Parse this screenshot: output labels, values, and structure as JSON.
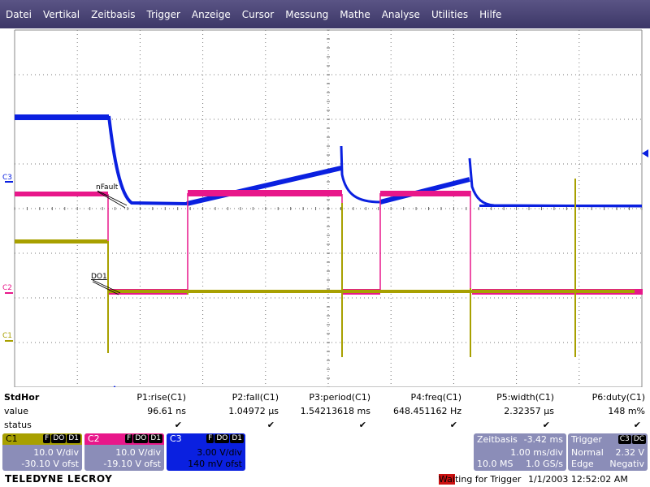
{
  "menu": [
    "Datei",
    "Vertikal",
    "Zeitbasis",
    "Trigger",
    "Anzeige",
    "Cursor",
    "Messung",
    "Mathe",
    "Analyse",
    "Utilities",
    "Hilfe"
  ],
  "colors": {
    "c1": "#a8a000",
    "c2": "#e8178a",
    "c3": "#0a20e0",
    "menu": "#4a4575",
    "panel": "#8b8db8"
  },
  "traces": {
    "c3_label": "C3",
    "c2_label": "C2",
    "c1_label": "C1",
    "annot_nfault": "nFault",
    "annot_do1": "DO1"
  },
  "measure": {
    "header": "StdHor",
    "row_value": "value",
    "row_status": "status",
    "params": [
      {
        "name": "P1:rise(C1)",
        "value": "96.61 ns"
      },
      {
        "name": "P2:fall(C1)",
        "value": "1.04972 µs"
      },
      {
        "name": "P3:period(C1)",
        "value": "1.54213618 ms"
      },
      {
        "name": "P4:freq(C1)",
        "value": "648.451162 Hz"
      },
      {
        "name": "P5:width(C1)",
        "value": "2.32357 µs"
      },
      {
        "name": "P6:duty(C1)",
        "value": "148 m%"
      }
    ]
  },
  "channels": {
    "c1": {
      "name": "C1",
      "badges": [
        "F",
        "DO",
        "D1"
      ],
      "vdiv": "10.0 V/div",
      "ofst": "-30.10 V ofst"
    },
    "c2": {
      "name": "C2",
      "badges": [
        "F",
        "DO",
        "D1"
      ],
      "vdiv": "10.0 V/div",
      "ofst": "-19.10 V ofst"
    },
    "c3": {
      "name": "C3",
      "badges": [
        "F",
        "DO",
        "D1"
      ],
      "vdiv": "3.00 V/div",
      "ofst": "140 mV ofst"
    }
  },
  "timebase": {
    "label": "Zeitbasis",
    "delay": "-3.42 ms",
    "tdiv": "1.00 ms/div",
    "samples": "10.0 MS",
    "rate": "1.0 GS/s"
  },
  "trigger": {
    "label": "Trigger",
    "badges": [
      "C3",
      "DC"
    ],
    "mode": "Normal",
    "level": "2.32 V",
    "type": "Edge",
    "slope": "Negativ"
  },
  "footer": {
    "logo": "TELEDYNE LECROY",
    "status_hl": "Wai",
    "status_rest": "ting for Trigger",
    "datetime": "1/1/2003 12:52:02 AM"
  }
}
